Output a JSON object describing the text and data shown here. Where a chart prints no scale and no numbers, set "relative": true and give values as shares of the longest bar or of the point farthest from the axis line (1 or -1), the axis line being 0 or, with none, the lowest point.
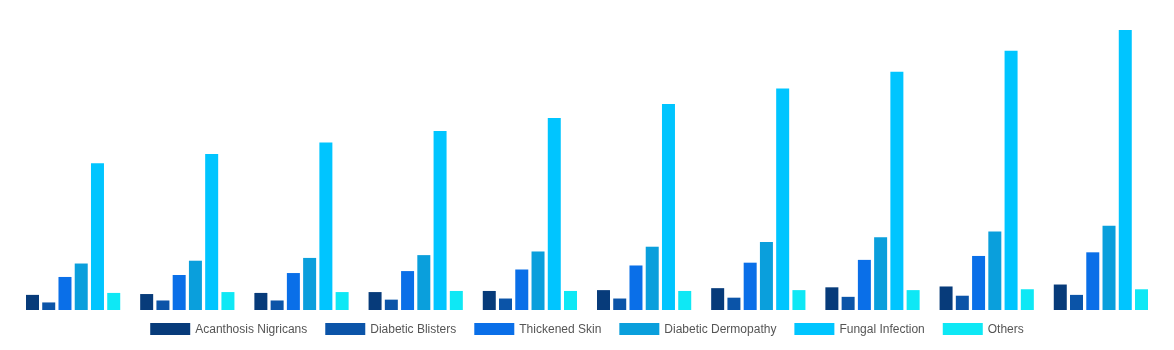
{
  "chart_data": {
    "type": "bar",
    "relative": true,
    "legend": "bottom",
    "grid": false,
    "categories": [
      null,
      null,
      null,
      null,
      null,
      null,
      null,
      null,
      null,
      null
    ],
    "series": [
      {
        "name": "Acanthosis Nigricans",
        "color": "#073b7a",
        "values": [
          0.054,
          0.057,
          0.061,
          0.064,
          0.068,
          0.071,
          0.078,
          0.081,
          0.084,
          0.091
        ]
      },
      {
        "name": "Diabetic Blisters",
        "color": "#0b54a8",
        "values": [
          0.027,
          0.034,
          0.034,
          0.037,
          0.041,
          0.041,
          0.044,
          0.047,
          0.051,
          0.054
        ]
      },
      {
        "name": "Thickened Skin",
        "color": "#0a6fe8",
        "values": [
          0.118,
          0.125,
          0.132,
          0.139,
          0.145,
          0.159,
          0.169,
          0.179,
          0.193,
          0.206
        ]
      },
      {
        "name": "Diabetic Dermopathy",
        "color": "#0a9fdc",
        "values": [
          0.166,
          0.176,
          0.186,
          0.196,
          0.209,
          0.226,
          0.243,
          0.26,
          0.28,
          0.301
        ]
      },
      {
        "name": "Fungal Infection",
        "color": "#00c5ff",
        "values": [
          0.524,
          0.557,
          0.598,
          0.639,
          0.686,
          0.736,
          0.791,
          0.851,
          0.926,
          1
        ]
      },
      {
        "name": "Others",
        "color": "#0ee8f5",
        "values": [
          0.061,
          0.064,
          0.064,
          0.068,
          0.068,
          0.068,
          0.071,
          0.071,
          0.074,
          0.074
        ]
      }
    ]
  }
}
